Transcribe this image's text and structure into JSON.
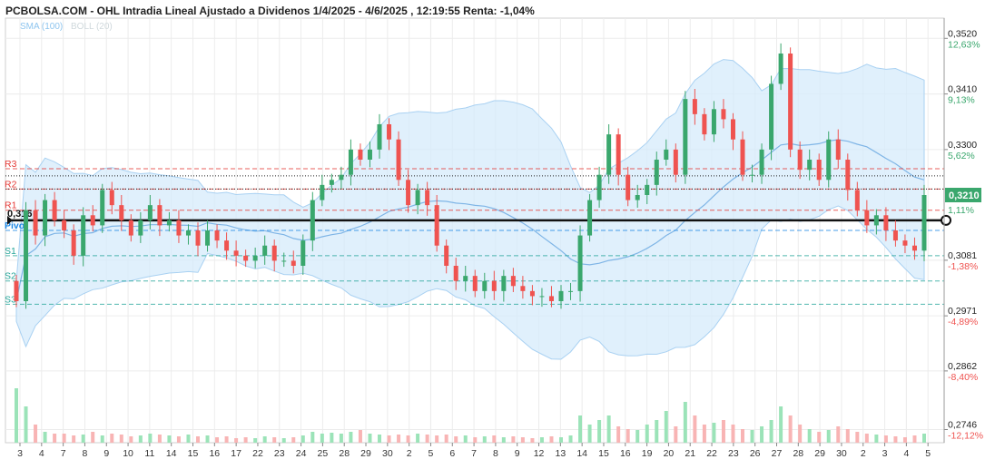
{
  "header": {
    "title": "PCBOLSA.COM - OHL Intradia Lineal Ajustado a Dividenos 1/4/2025 - 4/6/2025 , 12:19:55 Renta: -1,04%",
    "sma_label": "SMA (100)",
    "boll_label": "BOLL (20)"
  },
  "colors": {
    "up": "#3aa76d",
    "down": "#ef5350",
    "volume_up": "#9be3b8",
    "volume_down": "#f8b4b4",
    "band_fill": "#d6ebfb",
    "band_stroke": "#a9d1f2",
    "sma": "#7fb5e6",
    "pivot_line": "#1e88e5",
    "resistance_line": "#e53935",
    "support_line": "#26a69a",
    "price_badge": "#3aa76d"
  },
  "chart_data": {
    "type": "candlestick",
    "title": "PCBOLSA.COM - OHL Intradia Lineal Ajustado a Dividenos 1/4/2025 - 4/6/2025 , 12:19:55 Renta: -1,04%",
    "ylim": [
      0.272,
      0.356
    ],
    "y_ticks": [
      {
        "label": "0,3520",
        "pct": "12,63%",
        "value": 0.352,
        "trend": "up"
      },
      {
        "label": "0,3410",
        "pct": "9,13%",
        "value": 0.341,
        "trend": "up"
      },
      {
        "label": "0,3300",
        "pct": "5,62%",
        "value": 0.33,
        "trend": "up"
      },
      {
        "label": "0,3081",
        "pct": "-1,38%",
        "value": 0.3081,
        "trend": "down"
      },
      {
        "label": "0,2971",
        "pct": "-4,89%",
        "value": 0.2971,
        "trend": "down"
      },
      {
        "label": "0,2862",
        "pct": "-8,40%",
        "value": 0.2862,
        "trend": "down"
      },
      {
        "label": "0,2746",
        "pct": "-12,12%",
        "value": 0.2746,
        "trend": "down"
      }
    ],
    "x_labels": [
      "3",
      "4",
      "7",
      "8",
      "9",
      "10",
      "11",
      "14",
      "15",
      "16",
      "17",
      "22",
      "23",
      "24",
      "25",
      "28",
      "29",
      "30",
      "2",
      "5",
      "6",
      "7",
      "8",
      "9",
      "12",
      "13",
      "14",
      "15",
      "16",
      "19",
      "20",
      "21",
      "22",
      "23",
      "26",
      "27",
      "28",
      "29",
      "30",
      "2",
      "3",
      "4",
      "5"
    ],
    "current_price": {
      "label": "0,3210",
      "value": 0.321,
      "pct": "1,11%"
    },
    "reference_line": {
      "label": "0,316",
      "value": 0.316
    },
    "pivots": [
      {
        "name": "R3",
        "value": 0.3262,
        "kind": "resistance"
      },
      {
        "name": "R2",
        "value": 0.3222,
        "kind": "resistance"
      },
      {
        "name": "R1",
        "value": 0.318,
        "kind": "resistance"
      },
      {
        "name": "Pivot",
        "value": 0.314,
        "kind": "pivot"
      },
      {
        "name": "S1",
        "value": 0.309,
        "kind": "support"
      },
      {
        "name": "S2",
        "value": 0.304,
        "kind": "support"
      },
      {
        "name": "S3",
        "value": 0.2994,
        "kind": "support"
      }
    ],
    "dotted_levels": [
      0.3248,
      0.3222
    ],
    "closes": [
      0.3,
      0.318,
      0.313,
      0.32,
      0.316,
      0.314,
      0.309,
      0.317,
      0.315,
      0.322,
      0.319,
      0.316,
      0.313,
      0.316,
      0.319,
      0.315,
      0.316,
      0.313,
      0.314,
      0.311,
      0.314,
      0.312,
      0.31,
      0.309,
      0.308,
      0.309,
      0.311,
      0.308,
      0.308,
      0.307,
      0.312,
      0.32,
      0.323,
      0.324,
      0.325,
      0.33,
      0.328,
      0.33,
      0.335,
      0.332,
      0.324,
      0.319,
      0.322,
      0.319,
      0.311,
      0.307,
      0.304,
      0.305,
      0.302,
      0.304,
      0.302,
      0.305,
      0.303,
      0.302,
      0.301,
      0.301,
      0.3,
      0.302,
      0.302,
      0.313,
      0.32,
      0.325,
      0.333,
      0.325,
      0.32,
      0.321,
      0.323,
      0.328,
      0.33,
      0.325,
      0.34,
      0.337,
      0.333,
      0.338,
      0.336,
      0.332,
      0.325,
      0.325,
      0.33,
      0.343,
      0.349,
      0.33,
      0.326,
      0.328,
      0.324,
      0.332,
      0.328,
      0.322,
      0.318,
      0.315,
      0.317,
      0.314,
      0.312,
      0.311,
      0.31,
      0.321
    ],
    "volumes": [
      60,
      40,
      20,
      12,
      10,
      10,
      8,
      9,
      12,
      8,
      10,
      9,
      7,
      8,
      10,
      9,
      8,
      7,
      9,
      7,
      8,
      6,
      7,
      5,
      6,
      5,
      7,
      6,
      5,
      6,
      8,
      12,
      10,
      11,
      10,
      12,
      14,
      10,
      9,
      8,
      9,
      8,
      10,
      9,
      8,
      9,
      7,
      8,
      6,
      7,
      8,
      6,
      7,
      6,
      5,
      6,
      7,
      6,
      8,
      30,
      20,
      25,
      30,
      18,
      15,
      14,
      20,
      25,
      35,
      18,
      45,
      30,
      20,
      22,
      25,
      20,
      15,
      14,
      18,
      25,
      40,
      30,
      20,
      15,
      12,
      14,
      18,
      15,
      12,
      10,
      9,
      8,
      7,
      6,
      8,
      10
    ]
  }
}
